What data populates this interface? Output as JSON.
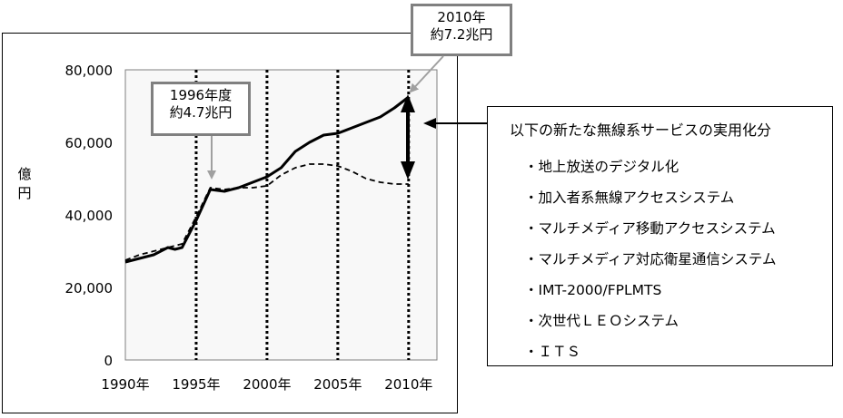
{
  "chart_data": {
    "type": "line",
    "ylabel": "億円",
    "ylim": [
      0,
      80000
    ],
    "yticks": [
      {
        "value": 0,
        "label": "0"
      },
      {
        "value": 20000,
        "label": "20,000"
      },
      {
        "value": 40000,
        "label": "40,000"
      },
      {
        "value": 60000,
        "label": "60,000"
      },
      {
        "value": 80000,
        "label": "80,000"
      }
    ],
    "xlim": [
      1990,
      2012
    ],
    "xticks": [
      {
        "value": 1990,
        "label": "1990年"
      },
      {
        "value": 1995,
        "label": "1995年"
      },
      {
        "value": 2000,
        "label": "2000年"
      },
      {
        "value": 2005,
        "label": "2005年"
      },
      {
        "value": 2010,
        "label": "2010年"
      }
    ],
    "vlines": [
      1995,
      2000,
      2005,
      2010
    ],
    "series": [
      {
        "style": "solid",
        "x": [
          1990,
          1991,
          1992,
          1993,
          1993.5,
          1994,
          1995,
          1996,
          1997,
          1998,
          1999,
          2000,
          2001,
          2002,
          2003,
          2004,
          2005,
          2006,
          2007,
          2008,
          2009,
          2010
        ],
        "y": [
          27000,
          28000,
          29000,
          31000,
          30500,
          31000,
          38500,
          47000,
          46500,
          47500,
          49000,
          50500,
          53000,
          57500,
          60000,
          62000,
          62500,
          64000,
          65500,
          67000,
          69500,
          72500
        ]
      },
      {
        "style": "dashed",
        "x": [
          1990,
          1991,
          1992,
          1993,
          1994,
          1995,
          1996,
          1997,
          1998,
          1999,
          2000,
          2001,
          2002,
          2003,
          2004,
          2005,
          2006,
          2007,
          2008,
          2009,
          2010
        ],
        "y": [
          27500,
          29000,
          30000,
          31000,
          32000,
          39500,
          47500,
          47000,
          47500,
          47500,
          48000,
          51000,
          53000,
          54000,
          54000,
          53500,
          52000,
          50000,
          49000,
          48500,
          48500
        ]
      }
    ],
    "annotations": [
      {
        "line1": "1996年度",
        "line2": "約4.7兆円",
        "x": 1996,
        "y": 47000
      },
      {
        "line1": "2010年",
        "line2": "約7.2兆円",
        "x": 2010,
        "y": 72500
      }
    ]
  },
  "info": {
    "title": "以下の新たな無線系サービスの実用化分",
    "items": [
      "・地上放送のデジタル化",
      "・加入者系無線アクセスシステム",
      "・マルチメディア移動アクセスシステム",
      "・マルチメディア対応衛星通信システム",
      "・IMT-2000/FPLMTS",
      "・次世代ＬＥＯシステム",
      "・ＩＴＳ"
    ]
  }
}
